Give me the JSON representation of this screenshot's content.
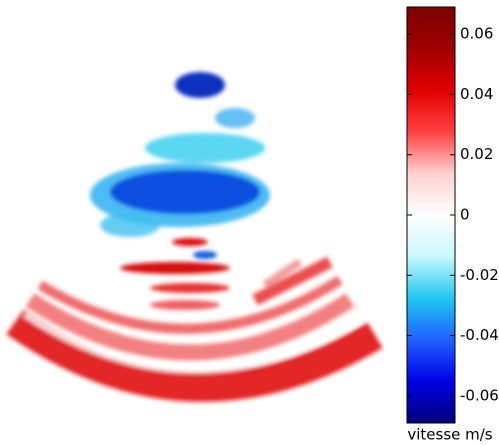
{
  "chart_data": {
    "type": "image",
    "colorbar": {
      "label": "vitesse m/s",
      "lim": [
        -0.069,
        0.069
      ],
      "ticks": [
        0.06,
        0.04,
        0.02,
        0,
        -0.02,
        -0.04,
        -0.06
      ],
      "colors": [
        "#00007a",
        "#0000e6",
        "#2060ff",
        "#20c8f0",
        "#c8f8ff",
        "#ffffff",
        "#ffd0d0",
        "#ff4040",
        "#e00000",
        "#a00000",
        "#7a0000"
      ]
    }
  }
}
